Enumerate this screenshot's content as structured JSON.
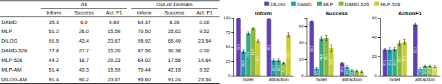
{
  "chart_data": [
    {
      "type": "table",
      "categories": [
        "DAMD",
        "MLP",
        "DILOG",
        "DAMD-526",
        "MLP-526",
        "MLP-AM",
        "DILOG-AM"
      ],
      "series": [
        {
          "group": "All",
          "name": "Inform",
          "values": [
            35.3,
            51.2,
            91.5,
            77.8,
            44.2,
            51.4,
            91.4
          ],
          "value_labels": [
            "35.3",
            "51.2",
            "91.5",
            "77.8",
            "44.2",
            "51.4",
            "91.4"
          ]
        },
        {
          "group": "All",
          "name": "Success",
          "values": [
            6.0,
            26.0,
            43.4,
            27.7,
            18.7,
            43.3,
            90.2
          ],
          "value_labels": [
            "6.0",
            "26.0",
            "43.4",
            "27.7",
            "18.7",
            "43.3",
            "90.2"
          ]
        },
        {
          "group": "All",
          "name": "Act. F1",
          "values": [
            4.6,
            15.59,
            23.67,
            15.2,
            29.23,
            15.59,
            23.67
          ],
          "value_labels": [
            "4.60",
            "15.59",
            "23.67",
            "15.20",
            "29.23",
            "15.59",
            "23.67"
          ]
        },
        {
          "group": "Out-of-Domain",
          "name": "Inform",
          "values": [
            64.37,
            70.5,
            95.92,
            87.56,
            64.02,
            70.44,
            95.6
          ],
          "value_labels": [
            "64.37",
            "70.50",
            "95.92",
            "87.56",
            "64.02",
            "70.44",
            "95.60"
          ]
        },
        {
          "group": "Out-of-Domain",
          "name": "Success",
          "values": [
            8.26,
            25.62,
            65.49,
            30.38,
            17.56,
            42.15,
            91.24
          ],
          "value_labels": [
            "8.26",
            "25.62",
            "65.49",
            "30.38",
            "17.56",
            "42.15",
            "91.24"
          ]
        },
        {
          "group": "Out-of-Domain",
          "name": "Act. F1",
          "values": [
            0.0,
            9.52,
            23.54,
            0.0,
            14.64,
            9.52,
            23.54
          ],
          "value_labels": [
            "0.00",
            "9.52",
            "23.54",
            "0.00",
            "14.64",
            "9.52",
            "23.54"
          ]
        }
      ]
    },
    {
      "type": "bar",
      "title": "Inform",
      "categories": [
        "hotel",
        "attraction"
      ],
      "series": [
        {
          "name": "DILOG",
          "color": "#6040b0",
          "values": [
            99.05,
            98.1
          ],
          "errors": [
            0.5,
            0.5
          ],
          "value_labels": [
            "99.0",
            "98.1"
          ]
        },
        {
          "name": "DAMD",
          "color": "#1a9aaa",
          "values": [
            41.9,
            26.67
          ],
          "errors": [
            2.5,
            2.5
          ],
          "value_labels": [
            "41.9",
            "26.7"
          ]
        },
        {
          "name": "MLP",
          "color": "#3aaa7a",
          "values": [
            73.33,
            26.67
          ],
          "errors": [
            2.5,
            2.5
          ],
          "value_labels": [
            "73.3",
            "26.7"
          ]
        },
        {
          "name": "DAMD-526",
          "color": "#88b838",
          "values": [
            81.9,
            21.9
          ],
          "errors": [
            1.5,
            1.5
          ],
          "value_labels": [
            "81.9",
            "21.9"
          ]
        },
        {
          "name": "MLP-526",
          "color": "#cccc30",
          "values": [
            60.0,
            70.48
          ],
          "errors": [
            2.0,
            3.5
          ],
          "value_labels": [
            "60.0",
            "70.5"
          ]
        }
      ],
      "ylim": [
        0,
        100
      ],
      "yticks": [
        0,
        25,
        50,
        75,
        100
      ],
      "data_labels": true
    },
    {
      "type": "bar",
      "title": "Success",
      "categories": [
        "hotel",
        "attraction"
      ],
      "series": [
        {
          "color": "#6040b0",
          "values": [
            65.71,
            15.24
          ],
          "errors": [
            1.0,
            1.0
          ],
          "value_labels": [
            "65.7",
            "15.2"
          ]
        },
        {
          "color": "#1a9aaa",
          "values": [
            8.57,
            10.48
          ],
          "errors": [
            1.5,
            1.5
          ],
          "value_labels": [
            "8.57",
            "10.5"
          ]
        },
        {
          "color": "#3aaa7a",
          "values": [
            44.76,
            6.67
          ],
          "errors": [
            2.5,
            1.0
          ],
          "value_labels": [
            "44.8",
            "6.67"
          ]
        },
        {
          "color": "#88b838",
          "values": [
            45.71,
            5.71
          ],
          "errors": [
            3.0,
            1.0
          ],
          "value_labels": [
            "45.7",
            null
          ]
        },
        {
          "color": "#cccc30",
          "values": [
            33.33,
            4.76
          ],
          "errors": [
            4.0,
            1.0
          ],
          "value_labels": [
            "33.3",
            null
          ]
        }
      ],
      "ylim": [
        0,
        70
      ],
      "yticks": [
        0,
        20,
        40,
        60
      ],
      "data_labels": true
    },
    {
      "type": "bar",
      "title": "ActionF1",
      "categories": [
        "hotel",
        "attraction"
      ],
      "series": [
        {
          "color": "#6040b0",
          "values": [
            27.03,
            53.14
          ],
          "errors": [
            1.0,
            1.5
          ],
          "value_labels": [
            "27.0",
            "53.1"
          ]
        },
        {
          "color": "#1a9aaa",
          "values": [
            27.03,
            7.14
          ],
          "errors": [
            2.0,
            1.0
          ],
          "value_labels": [
            "27.0",
            "7.14"
          ]
        },
        {
          "color": "#3aaa7a",
          "values": [
            27.68,
            10.08
          ],
          "errors": [
            2.0,
            1.0
          ],
          "value_labels": [
            "27.7",
            "10.1"
          ]
        },
        {
          "color": "#88b838",
          "values": [
            33.71,
            10.08
          ],
          "errors": [
            2.5,
            1.0
          ],
          "value_labels": [
            "33.7",
            "10.1"
          ]
        },
        {
          "color": "#cccc30",
          "values": [
            35.15,
            9.28
          ],
          "errors": [
            2.5,
            1.0
          ],
          "value_labels": [
            "35.1",
            "9.28"
          ]
        }
      ],
      "ylim": [
        0,
        60
      ],
      "yticks": [
        0,
        20,
        40,
        60
      ],
      "data_labels": true
    }
  ]
}
